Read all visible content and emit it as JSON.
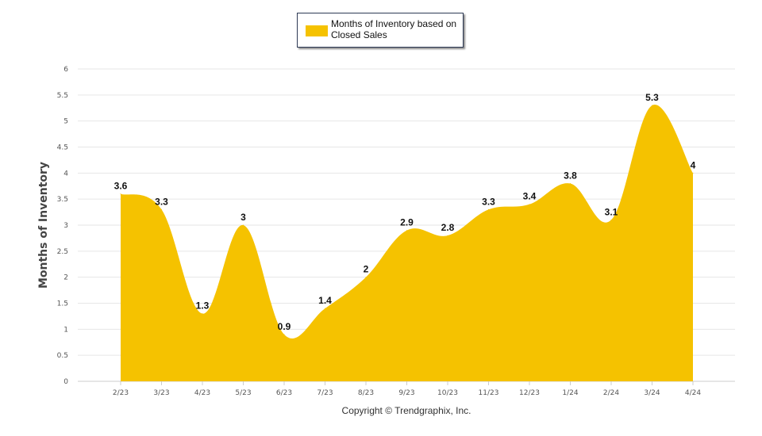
{
  "legend": {
    "label": "Months of Inventory based on Closed Sales"
  },
  "copyright": "Copyright © Trendgraphix, Inc.",
  "colors": {
    "area": "#f5c200",
    "grid": "#e6e6e6",
    "axis": "#cccccc"
  },
  "chart_data": {
    "type": "area",
    "title": "",
    "xlabel": "",
    "ylabel": "Months of Inventory",
    "ylim": [
      0,
      6
    ],
    "yticks": [
      "0",
      "0.5",
      "1",
      "1.5",
      "2",
      "2.5",
      "3",
      "3.5",
      "4",
      "4.5",
      "5",
      "5.5",
      "6"
    ],
    "categories": [
      "2/23",
      "3/23",
      "4/23",
      "5/23",
      "6/23",
      "7/23",
      "8/23",
      "9/23",
      "10/23",
      "11/23",
      "12/23",
      "1/24",
      "2/24",
      "3/24",
      "4/24"
    ],
    "series": [
      {
        "name": "Months of Inventory based on Closed Sales",
        "values": [
          3.6,
          3.3,
          1.3,
          3,
          0.9,
          1.4,
          2,
          2.9,
          2.8,
          3.3,
          3.4,
          3.8,
          3.1,
          5.3,
          4
        ],
        "labels": [
          "3.6",
          "3.3",
          "1.3",
          "3",
          "0.9",
          "1.4",
          "2",
          "2.9",
          "2.8",
          "3.3",
          "3.4",
          "3.8",
          "3.1",
          "5.3",
          "4"
        ]
      }
    ],
    "legend_position": "top-center",
    "grid": true
  }
}
